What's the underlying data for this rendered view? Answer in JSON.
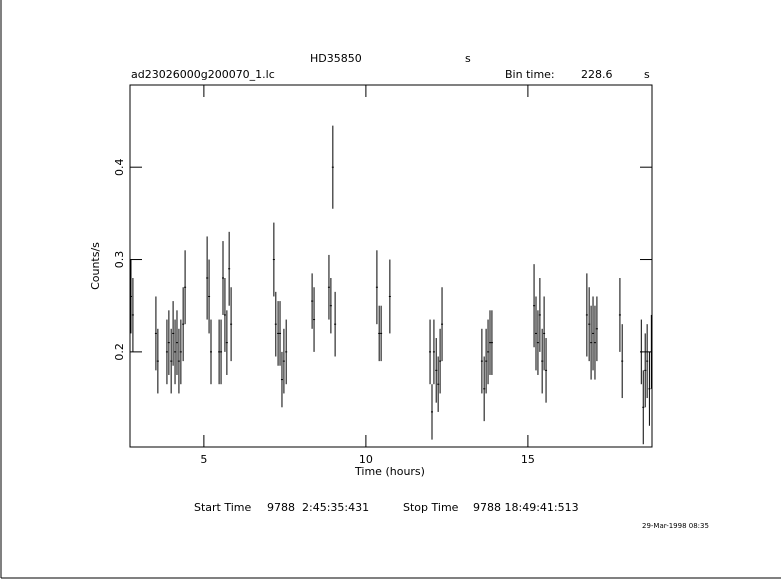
{
  "chart_data": {
    "type": "scatter",
    "title": "HD35850",
    "title_unit": "s",
    "file": "ad23026000g200070_1.lc",
    "bin_time_label": "Bin time:",
    "bin_time": "228.6",
    "bin_time_unit": "s",
    "x_label": "Time (hours)",
    "y_label": "Counts/s",
    "start_label": "Start Time",
    "start": "9788  2:45:35:431",
    "stop_label": "Stop Time",
    "stop": "9788 18:49:41:513",
    "date": "29-Mar-1998 08:35",
    "color": "#000000",
    "xlim": [
      2.72,
      18.83
    ],
    "ylim": [
      0.097,
      0.489
    ],
    "xticks": [
      5,
      10,
      15
    ],
    "yticks": [
      0.2,
      0.3,
      0.4
    ],
    "x": [
      2.75,
      2.81,
      3.52,
      3.58,
      3.86,
      3.92,
      3.99,
      4.05,
      4.11,
      4.17,
      4.23,
      4.29,
      4.36,
      4.42,
      5.1,
      5.16,
      5.22,
      5.47,
      5.53,
      5.59,
      5.65,
      5.71,
      5.78,
      5.84,
      7.16,
      7.22,
      7.29,
      7.35,
      7.41,
      7.47,
      7.54,
      8.34,
      8.4,
      8.86,
      8.92,
      8.98,
      9.05,
      10.34,
      10.41,
      10.47,
      10.74,
      11.98,
      12.04,
      12.1,
      12.17,
      12.23,
      12.29,
      12.35,
      13.58,
      13.65,
      13.71,
      13.77,
      13.83,
      13.89,
      15.19,
      15.25,
      15.31,
      15.37,
      15.44,
      15.5,
      15.56,
      16.82,
      16.89,
      16.95,
      17.01,
      17.07,
      17.13,
      17.84,
      17.91,
      18.5,
      18.56,
      18.62,
      18.68,
      18.75,
      18.81
    ],
    "values": [
      0.26,
      0.24,
      0.22,
      0.19,
      0.2,
      0.21,
      0.19,
      0.22,
      0.2,
      0.21,
      0.19,
      0.2,
      0.23,
      0.27,
      0.28,
      0.26,
      0.2,
      0.2,
      0.2,
      0.28,
      0.24,
      0.21,
      0.29,
      0.23,
      0.3,
      0.23,
      0.22,
      0.22,
      0.17,
      0.19,
      0.2,
      0.255,
      0.235,
      0.27,
      0.25,
      0.4,
      0.23,
      0.27,
      0.22,
      0.22,
      0.26,
      0.2,
      0.135,
      0.2,
      0.18,
      0.165,
      0.19,
      0.23,
      0.19,
      0.16,
      0.19,
      0.2,
      0.21,
      0.21,
      0.25,
      0.22,
      0.21,
      0.24,
      0.19,
      0.22,
      0.18,
      0.24,
      0.23,
      0.21,
      0.22,
      0.21,
      0.225,
      0.24,
      0.19,
      0.2,
      0.14,
      0.18,
      0.19,
      0.16,
      0.2
    ],
    "errors": [
      0.04,
      0.04,
      0.04,
      0.035,
      0.035,
      0.035,
      0.035,
      0.035,
      0.035,
      0.035,
      0.035,
      0.035,
      0.04,
      0.04,
      0.045,
      0.04,
      0.035,
      0.035,
      0.035,
      0.04,
      0.04,
      0.035,
      0.04,
      0.04,
      0.04,
      0.035,
      0.035,
      0.035,
      0.03,
      0.035,
      0.035,
      0.03,
      0.035,
      0.035,
      0.03,
      0.045,
      0.035,
      0.04,
      0.03,
      0.03,
      0.04,
      0.035,
      0.03,
      0.035,
      0.035,
      0.03,
      0.035,
      0.04,
      0.035,
      0.035,
      0.035,
      0.035,
      0.035,
      0.035,
      0.045,
      0.04,
      0.035,
      0.04,
      0.035,
      0.04,
      0.035,
      0.045,
      0.04,
      0.04,
      0.04,
      0.04,
      0.035,
      0.04,
      0.04,
      0.035,
      0.04,
      0.04,
      0.04,
      0.04,
      0.04
    ]
  }
}
